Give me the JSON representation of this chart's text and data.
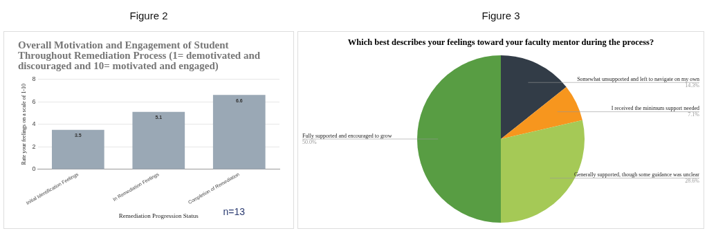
{
  "chart_data": [
    {
      "type": "bar",
      "title": "Overall Motivation and Engagement of Student Throughout Remediation Process (1= demotivated and discouraged and 10= motivated and engaged)",
      "xlabel": "Remediation Progression Status",
      "ylabel": "Rate your feelings on a scale of 1-10",
      "categories": [
        "Initial Identification Feelings",
        "In Remediation Feelings",
        "Completion of Remediation"
      ],
      "values": [
        3.5,
        5.1,
        6.6
      ],
      "color": "#9aa8b5",
      "ylim": [
        0,
        8
      ],
      "yticks": [
        0,
        2,
        4,
        6,
        8
      ],
      "grid": "y",
      "legend": false,
      "data_labels": true,
      "annotations": [
        "Figure 2",
        "n=13"
      ]
    },
    {
      "type": "pie",
      "title": "Which best describes your feelings toward your faculty mentor during the process?",
      "categories": [
        "Somewhat unsupported and left to navigate on my own",
        "I received the minimum support needed",
        "Generally supported, though some guidance was unclear",
        "Fully supported and encouraged to grow"
      ],
      "values": [
        14.3,
        7.1,
        28.6,
        50.0
      ],
      "colors": [
        "#323c47",
        "#f7961e",
        "#a5c956",
        "#589d43"
      ],
      "value_labels": [
        "14.3%",
        "7.1%",
        "28.6%",
        "50.0%"
      ],
      "legend": false,
      "annotations": [
        "Figure 3"
      ]
    }
  ]
}
